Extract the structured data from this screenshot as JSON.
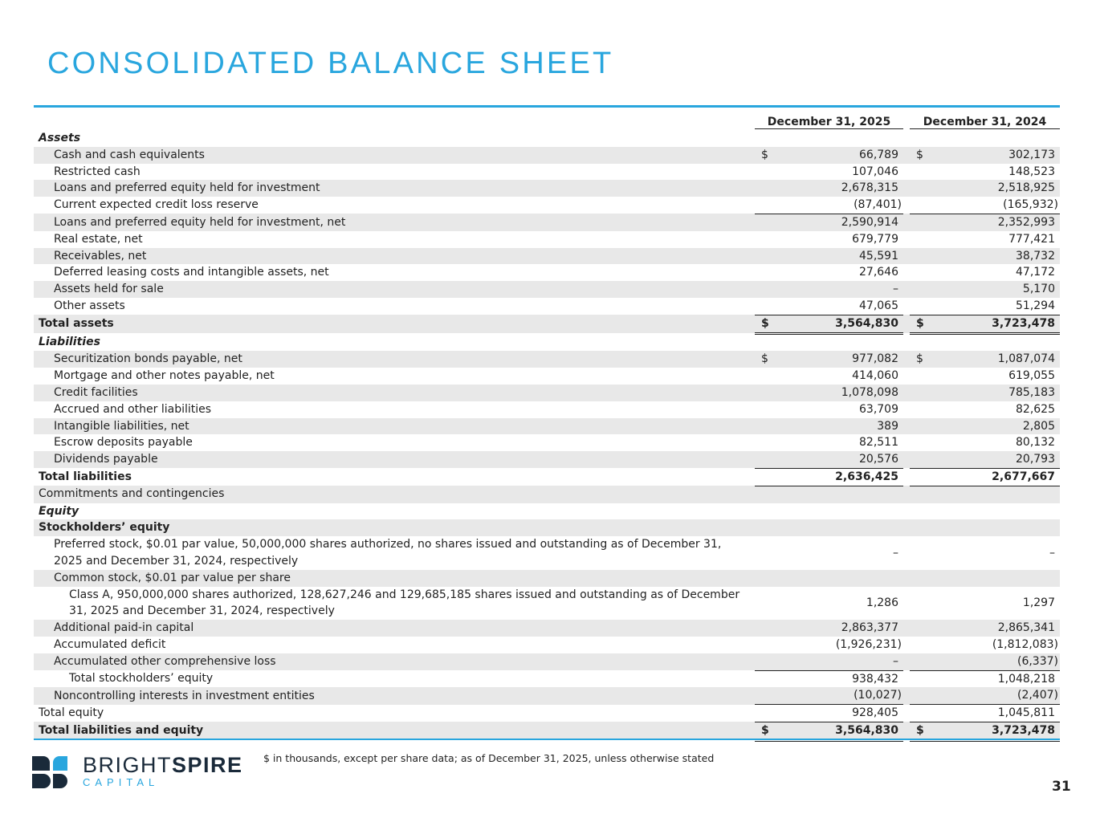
{
  "header": {
    "title": "CONSOLIDATED BALANCE SHEET"
  },
  "table": {
    "columns": [
      "December 31, 2025",
      "December 31, 2024"
    ],
    "rows": [
      {
        "label": "Assets"
      },
      {
        "label": "Cash and cash equivalents",
        "currency": [
          "$",
          "$"
        ],
        "values": [
          "66,789",
          "302,173"
        ]
      },
      {
        "label": "Restricted cash",
        "values": [
          "107,046",
          "148,523"
        ]
      },
      {
        "label": "Loans and preferred equity held for investment",
        "values": [
          "2,678,315",
          "2,518,925"
        ]
      },
      {
        "label": "Current expected credit loss reserve",
        "values": [
          "(87,401)",
          "(165,932)"
        ]
      },
      {
        "label": "Loans and preferred equity held for investment, net",
        "values": [
          "2,590,914",
          "2,352,993"
        ]
      },
      {
        "label": "Real estate, net",
        "values": [
          "679,779",
          "777,421"
        ]
      },
      {
        "label": "Receivables, net",
        "values": [
          "45,591",
          "38,732"
        ]
      },
      {
        "label": "Deferred leasing costs and intangible assets, net",
        "values": [
          "27,646",
          "47,172"
        ]
      },
      {
        "label": "Assets held for sale",
        "values": [
          "–",
          "5,170"
        ]
      },
      {
        "label": "Other assets",
        "values": [
          "47,065",
          "51,294"
        ]
      },
      {
        "label": "Total assets",
        "currency": [
          "$",
          "$"
        ],
        "values": [
          "3,564,830",
          "3,723,478"
        ]
      },
      {
        "label": "Liabilities"
      },
      {
        "label": "Securitization bonds payable, net",
        "currency": [
          "$",
          "$"
        ],
        "values": [
          "977,082",
          "1,087,074"
        ]
      },
      {
        "label": "Mortgage and other notes payable, net",
        "values": [
          "414,060",
          "619,055"
        ]
      },
      {
        "label": "Credit facilities",
        "values": [
          "1,078,098",
          "785,183"
        ]
      },
      {
        "label": "Accrued and other liabilities",
        "values": [
          "63,709",
          "82,625"
        ]
      },
      {
        "label": "Intangible liabilities, net",
        "values": [
          "389",
          "2,805"
        ]
      },
      {
        "label": "Escrow deposits payable",
        "values": [
          "82,511",
          "80,132"
        ]
      },
      {
        "label": "Dividends payable",
        "values": [
          "20,576",
          "20,793"
        ]
      },
      {
        "label": "Total liabilities",
        "values": [
          "2,636,425",
          "2,677,667"
        ]
      },
      {
        "label": "Commitments and contingencies"
      },
      {
        "label": "Equity"
      },
      {
        "label": "Stockholders’ equity"
      },
      {
        "label": "Preferred stock, $0.01 par value, 50,000,000 shares authorized, no shares issued and outstanding as of December 31, 2025 and December 31, 2024, respectively",
        "values": [
          "–",
          "–"
        ]
      },
      {
        "label": "Common stock, $0.01 par value per share"
      },
      {
        "label": "Class A, 950,000,000 shares authorized, 128,627,246 and 129,685,185 shares issued and outstanding as of December 31, 2025 and December 31, 2024, respectively",
        "values": [
          "1,286",
          "1,297"
        ]
      },
      {
        "label": "Additional paid-in capital",
        "values": [
          "2,863,377",
          "2,865,341"
        ]
      },
      {
        "label": "Accumulated deficit",
        "values": [
          "(1,926,231)",
          "(1,812,083)"
        ]
      },
      {
        "label": "Accumulated other comprehensive loss",
        "values": [
          "–",
          "(6,337)"
        ]
      },
      {
        "label": "Total stockholders’ equity",
        "values": [
          "938,432",
          "1,048,218"
        ]
      },
      {
        "label": "Noncontrolling interests in investment entities",
        "values": [
          "(10,027)",
          "(2,407)"
        ]
      },
      {
        "label": "Total equity",
        "values": [
          "928,405",
          "1,045,811"
        ]
      },
      {
        "label": "Total liabilities and equity",
        "currency": [
          "$",
          "$"
        ],
        "values": [
          "3,564,830",
          "3,723,478"
        ]
      }
    ]
  },
  "footer": {
    "note": "$ in thousands, except per share data; as of December 31, 2025, unless otherwise stated",
    "logo": {
      "bright": "BRIGHT",
      "spire": "SPIRE",
      "capital": "CAPITAL"
    },
    "page_number": "31"
  }
}
